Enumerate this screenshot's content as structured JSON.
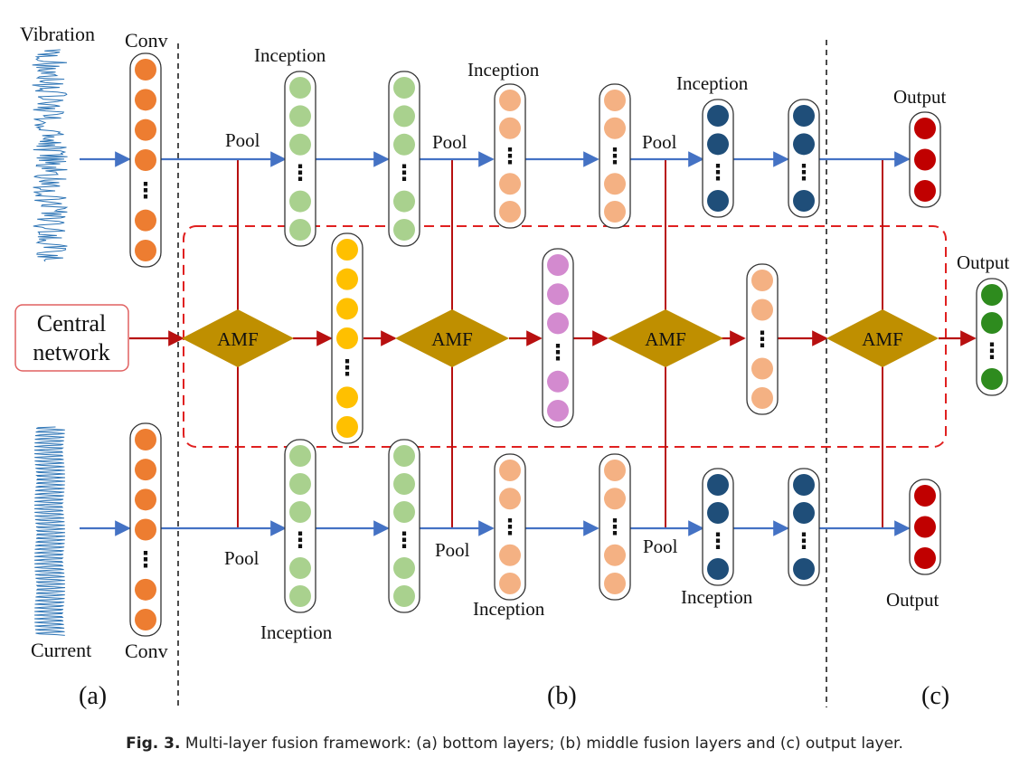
{
  "labels": {
    "vibration": "Vibration",
    "current": "Current",
    "conv": "Conv",
    "pool": "Pool",
    "inception": "Inception",
    "output": "Output",
    "amf": "AMF",
    "central_line1": "Central",
    "central_line2": "network",
    "dots": "⋮"
  },
  "panels": {
    "a": "(a)",
    "b": "(b)",
    "c": "(c)"
  },
  "caption": {
    "figure_label": "Fig. 3.",
    "text": "Multi-layer fusion framework: (a) bottom layers; (b) middle fusion layers and (c) output layer."
  },
  "colors": {
    "conv": "#ED7D31",
    "inception1": "#A9D18E",
    "inception2": "#F4B183",
    "inception3": "#1F4E79",
    "output": "#C00000",
    "amf": "#BF8F00",
    "middle1": "#FFC000",
    "middle2": "#D38ACF",
    "middle3": "#F4B183",
    "final_output": "#2E8B1E",
    "blue_arrow": "#4472C4",
    "red_line": "#B81010",
    "dashed_box": "#E02020",
    "signal": "#2E75B6"
  }
}
